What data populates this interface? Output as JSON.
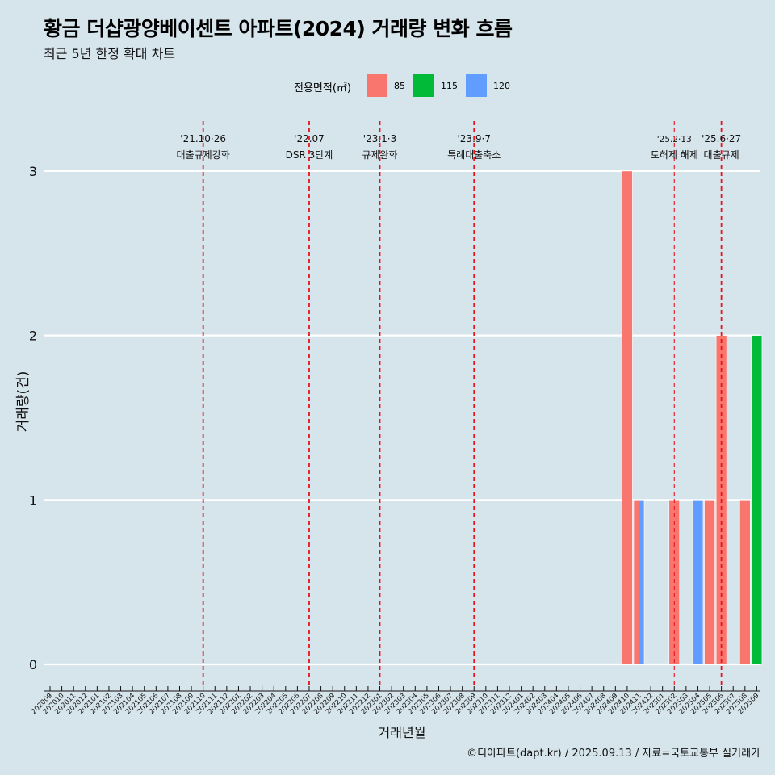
{
  "title": "황금 더샵광양베이센트 아파트(2024) 거래량 변화 흐름",
  "subtitle": "최근 5년 한정 확대 차트",
  "caption": "©디아파트(dapt.kr) / 2025.09.13 / 자료=국토교통부 실거래가",
  "colors": {
    "background": "#d6e4eb",
    "85": "#f8766d",
    "115": "#00ba38",
    "120": "#619cff",
    "policy_line": "#e8141b"
  },
  "chart_data": {
    "type": "bar",
    "xlabel": "거래년월",
    "ylabel": "거래량(건)",
    "ylim": [
      0,
      3
    ],
    "yticks": [
      0,
      1,
      2,
      3
    ],
    "grid": true,
    "legend": {
      "title": "전용면적(㎡)",
      "position": "top",
      "entries": [
        "85",
        "115",
        "120"
      ]
    },
    "categories": [
      "202009",
      "202010",
      "202011",
      "202012",
      "202101",
      "202102",
      "202103",
      "202104",
      "202105",
      "202106",
      "202107",
      "202108",
      "202109",
      "202110",
      "202111",
      "202112",
      "202201",
      "202202",
      "202203",
      "202204",
      "202205",
      "202206",
      "202207",
      "202208",
      "202209",
      "202210",
      "202211",
      "202212",
      "202301",
      "202302",
      "202303",
      "202304",
      "202305",
      "202306",
      "202307",
      "202308",
      "202309",
      "202310",
      "202311",
      "202312",
      "202401",
      "202402",
      "202403",
      "202404",
      "202405",
      "202406",
      "202407",
      "202408",
      "202409",
      "202410",
      "202411",
      "202412",
      "202501",
      "202502",
      "202503",
      "202504",
      "202505",
      "202506",
      "202507",
      "202508",
      "202509"
    ],
    "series": [
      {
        "name": "85",
        "color": "#f8766d",
        "points": [
          {
            "x": "202410",
            "y": 3
          },
          {
            "x": "202411",
            "y": 1
          },
          {
            "x": "202502",
            "y": 1
          },
          {
            "x": "202505",
            "y": 1
          },
          {
            "x": "202506",
            "y": 2
          },
          {
            "x": "202508",
            "y": 1
          }
        ]
      },
      {
        "name": "115",
        "color": "#00ba38",
        "points": [
          {
            "x": "202509",
            "y": 2
          }
        ]
      },
      {
        "name": "120",
        "color": "#619cff",
        "points": [
          {
            "x": "202411",
            "y": 1
          },
          {
            "x": "202504",
            "y": 1
          }
        ]
      }
    ],
    "annotations": [
      {
        "x": "202110",
        "date": "'21.10·26",
        "label": "대출규제강화"
      },
      {
        "x": "202207",
        "date": "'22.07",
        "label": "DSR 3단계"
      },
      {
        "x": "202301",
        "date": "'23.1·3",
        "label": "규제완화"
      },
      {
        "x": "202309",
        "date": "'23.9·7",
        "label": "특례대출축소"
      },
      {
        "x": "202502",
        "date": "'25.2·13",
        "label": "토허제 해제"
      },
      {
        "x": "202506",
        "date": "'25.6·27",
        "label": "대출규제"
      }
    ]
  }
}
